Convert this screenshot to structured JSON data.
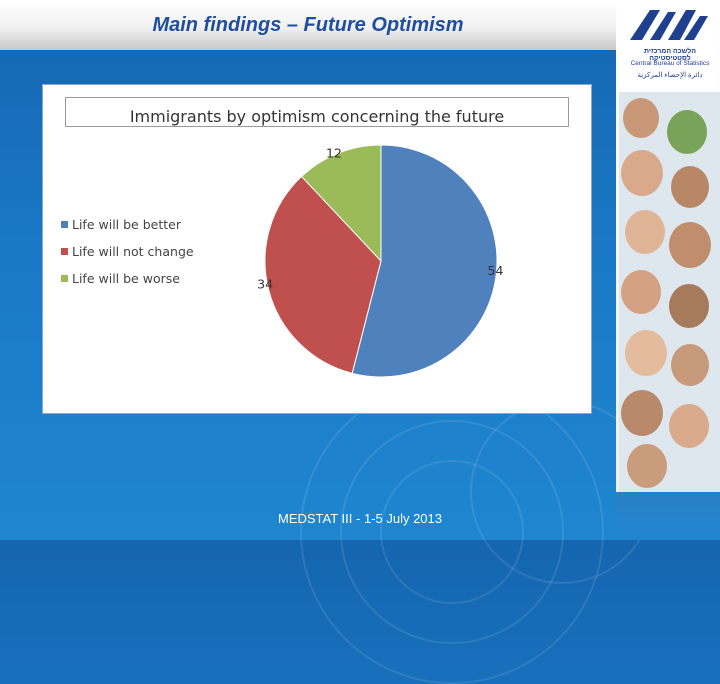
{
  "slide": {
    "title": "Main findings – Future Optimism",
    "footer": "MEDSTAT III - 1-5 July 2013"
  },
  "logo": {
    "hebrew": "הלשכה המרכזית לסטטיסטיקה",
    "english": "Central Bureau of Statistics",
    "arabic": "دائرة الإحصاء المركزية"
  },
  "chart_data": {
    "type": "pie",
    "title": "Immigrants by optimism concerning the future",
    "categories": [
      "Life will be better",
      "Life will not change",
      "Life will be worse"
    ],
    "values": [
      54,
      34,
      12
    ],
    "colors": [
      "#4f81bd",
      "#c0504d",
      "#9bbb59"
    ],
    "legend_position": "left",
    "data_labels": true
  }
}
